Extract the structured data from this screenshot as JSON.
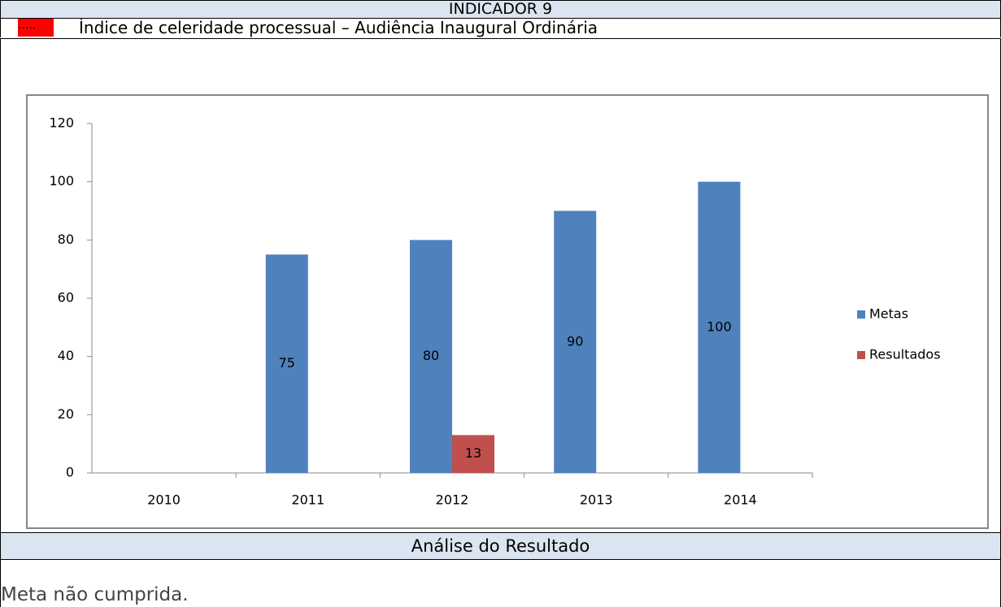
{
  "header": {
    "title": "INDICADOR 9",
    "marker": ".....",
    "subtitle": "Índice de celeridade processual – Audiência Inaugural Ordinária"
  },
  "chart_data": {
    "type": "bar",
    "categories": [
      "2010",
      "2011",
      "2012",
      "2013",
      "2014"
    ],
    "series": [
      {
        "name": "Metas",
        "color": "#4f81bd",
        "values": [
          null,
          75,
          80,
          90,
          100
        ]
      },
      {
        "name": "Resultados",
        "color": "#c0504d",
        "values": [
          null,
          null,
          13,
          null,
          null
        ]
      }
    ],
    "ylim": [
      0,
      120
    ],
    "yticks": [
      0,
      20,
      40,
      60,
      80,
      100,
      120
    ],
    "legend": "right",
    "data_labels": true
  },
  "analysis": {
    "title": "Análise do Resultado",
    "text": "Meta não cumprida."
  }
}
